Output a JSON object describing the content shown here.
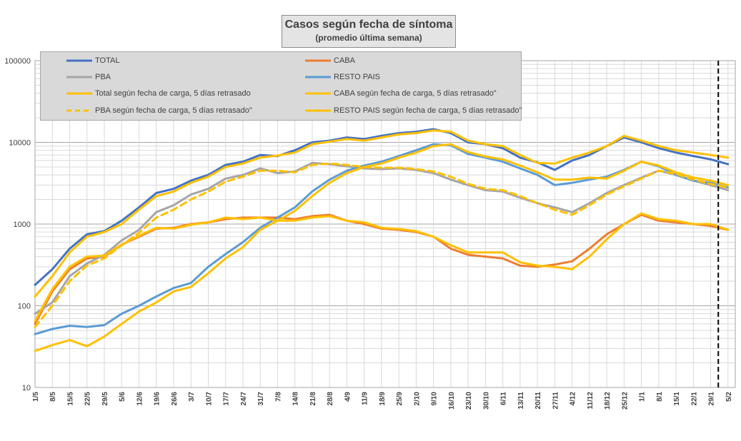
{
  "chart_data": {
    "type": "line",
    "title": "Casos según fecha de síntoma",
    "subtitle": "(promedio última semana)",
    "xlabel": "",
    "ylabel": "",
    "yscale": "log",
    "ylim": [
      10,
      100000
    ],
    "y_ticks": [
      "10",
      "100",
      "1000",
      "10000",
      "100000"
    ],
    "grid": true,
    "legend_position": "top-left",
    "categories": [
      "1/5",
      "8/5",
      "15/5",
      "22/5",
      "29/5",
      "5/6",
      "12/6",
      "19/6",
      "26/6",
      "3/7",
      "10/7",
      "17/7",
      "24/7",
      "31/7",
      "7/8",
      "14/8",
      "21/8",
      "28/8",
      "4/9",
      "11/9",
      "18/9",
      "25/9",
      "2/10",
      "9/10",
      "16/10",
      "23/10",
      "30/10",
      "6/11",
      "13/11",
      "20/11",
      "27/11",
      "4/12",
      "11/12",
      "18/12",
      "25/12",
      "1/1",
      "8/1",
      "15/1",
      "22/1",
      "29/1",
      "5/2"
    ],
    "vertical_marker_at": "1/2",
    "series": [
      {
        "name": "TOTAL",
        "color": "#4472c4",
        "dash": "solid",
        "values": [
          180,
          280,
          500,
          750,
          820,
          1100,
          1600,
          2400,
          2700,
          3400,
          4000,
          5300,
          5800,
          7000,
          6800,
          8000,
          10000,
          10500,
          11500,
          11000,
          12000,
          13000,
          13500,
          14500,
          13000,
          10000,
          9500,
          8500,
          6500,
          5700,
          4600,
          6000,
          7000,
          9000,
          11500,
          10000,
          8500,
          7500,
          6800,
          6200,
          5400
        ]
      },
      {
        "name": "CABA",
        "color": "#ed7d31",
        "dash": "solid",
        "values": [
          60,
          150,
          280,
          380,
          400,
          560,
          700,
          880,
          900,
          1000,
          1050,
          1150,
          1200,
          1200,
          1200,
          1150,
          1250,
          1300,
          1100,
          1000,
          880,
          850,
          800,
          700,
          500,
          420,
          400,
          380,
          310,
          300,
          320,
          350,
          500,
          750,
          1000,
          1300,
          1100,
          1050,
          1000,
          950,
          850
        ]
      },
      {
        "name": "PBA",
        "color": "#a5a5a5",
        "dash": "solid",
        "values": [
          80,
          110,
          230,
          330,
          420,
          630,
          850,
          1400,
          1700,
          2300,
          2700,
          3600,
          4000,
          4800,
          4200,
          4400,
          5600,
          5400,
          5100,
          4800,
          4700,
          4800,
          4600,
          4200,
          3500,
          3000,
          2600,
          2500,
          2100,
          1800,
          1600,
          1400,
          1800,
          2400,
          3000,
          3700,
          4500,
          4000,
          3400,
          3000,
          2600
        ]
      },
      {
        "name": "RESTO PAIS",
        "color": "#5b9bd5",
        "dash": "solid",
        "values": [
          45,
          52,
          57,
          55,
          58,
          80,
          100,
          130,
          165,
          190,
          300,
          430,
          600,
          900,
          1200,
          1600,
          2500,
          3500,
          4500,
          5200,
          5800,
          6800,
          8000,
          9500,
          9200,
          7200,
          6500,
          5800,
          4800,
          4000,
          3000,
          3200,
          3500,
          3800,
          4600,
          5800,
          5100,
          4000,
          3400,
          3200,
          2800
        ]
      },
      {
        "name": "Total según fecha de carga, 5 días retrasado",
        "color": "#ffc000",
        "dash": "solid",
        "values": [
          130,
          230,
          450,
          700,
          800,
          1000,
          1500,
          2200,
          2500,
          3200,
          3800,
          5000,
          5500,
          6500,
          6900,
          7500,
          9500,
          10200,
          11000,
          10500,
          11500,
          12500,
          13000,
          14000,
          13500,
          10500,
          9500,
          9000,
          7000,
          5600,
          5500,
          6500,
          7500,
          9000,
          12000,
          10500,
          9000,
          8000,
          7500,
          7000,
          6500
        ]
      },
      {
        "name": "CABA según fecha de carga, 5 días retrasado\"",
        "color": "#ffc000",
        "dash": "solid",
        "values": [
          65,
          160,
          300,
          400,
          410,
          560,
          720,
          900,
          880,
          980,
          1050,
          1200,
          1150,
          1200,
          1100,
          1100,
          1200,
          1250,
          1100,
          1050,
          900,
          870,
          820,
          700,
          550,
          450,
          450,
          450,
          340,
          310,
          300,
          280,
          400,
          650,
          1000,
          1350,
          1150,
          1100,
          1000,
          1000,
          850
        ]
      },
      {
        "name": "PBA según fecha de carga, 5 días retrasado\"",
        "color": "#ffc000",
        "dash": "dash",
        "values": [
          55,
          100,
          200,
          310,
          380,
          550,
          780,
          1200,
          1500,
          2000,
          2500,
          3300,
          3800,
          4500,
          4500,
          4300,
          5300,
          5500,
          5300,
          5000,
          4900,
          4900,
          4700,
          4400,
          3800,
          3100,
          2700,
          2600,
          2200,
          1800,
          1500,
          1300,
          1700,
          2300,
          2900,
          3600,
          4500,
          4100,
          3500,
          3100,
          2800
        ]
      },
      {
        "name": "RESTO PAIS según fecha de carga, 5 días retrasado\"",
        "color": "#ffc000",
        "dash": "solid",
        "values": [
          28,
          33,
          38,
          32,
          42,
          60,
          85,
          110,
          150,
          170,
          250,
          380,
          520,
          850,
          1100,
          1450,
          2200,
          3200,
          4200,
          5000,
          5500,
          6500,
          7500,
          9000,
          9500,
          7600,
          6700,
          6200,
          5200,
          4300,
          3500,
          3500,
          3700,
          3600,
          4500,
          5800,
          5200,
          4300,
          3700,
          3400,
          3000
        ]
      }
    ]
  }
}
